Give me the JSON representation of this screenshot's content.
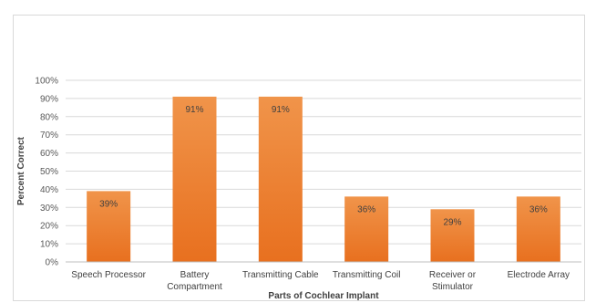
{
  "chart_data": {
    "type": "bar",
    "title": "",
    "xlabel": "Parts of Cochlear Implant",
    "ylabel": "Percent Correct",
    "ylim": [
      0,
      100
    ],
    "yticks": [
      "0%",
      "10%",
      "20%",
      "30%",
      "40%",
      "50%",
      "60%",
      "70%",
      "80%",
      "90%",
      "100%"
    ],
    "categories": [
      [
        "Speech Processor"
      ],
      [
        "Battery",
        "Compartment"
      ],
      [
        "Transmitting Cable"
      ],
      [
        "Transmitting Coil"
      ],
      [
        "Receiver or",
        "Stimulator"
      ],
      [
        "Electrode Array"
      ]
    ],
    "values": [
      39,
      91,
      91,
      36,
      29,
      36
    ],
    "data_labels": [
      "39%",
      "91%",
      "91%",
      "36%",
      "29%",
      "36%"
    ],
    "grid": true,
    "legend": "none",
    "bar_color_top": "#f0944a",
    "bar_color_bottom": "#e8701f",
    "gridline_color": "#d9d9d9"
  }
}
